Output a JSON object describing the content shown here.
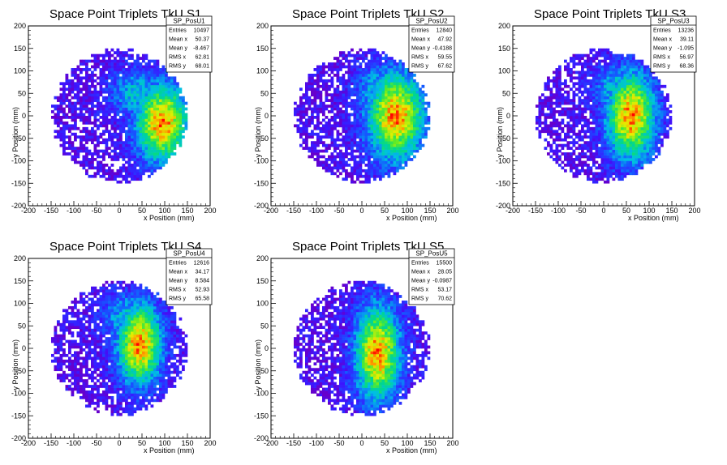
{
  "chart_data": [
    {
      "type": "heatmap",
      "title": "Space Point Triplets TkU S1",
      "xlabel": "x Position (mm)",
      "ylabel": "y Position (mm)",
      "xlim": [
        -200,
        200
      ],
      "ylim": [
        -200,
        200
      ],
      "xticks": [
        "-200",
        "-150",
        "-100",
        "-50",
        "0",
        "50",
        "100",
        "150",
        "200"
      ],
      "yticks": [
        "-200",
        "-150",
        "-100",
        "-50",
        "0",
        "50",
        "100",
        "150",
        "200"
      ],
      "colormap": "rainbow",
      "stats": {
        "name": "SP_PosU1",
        "rows": [
          {
            "label": "Entries",
            "value": "10497"
          },
          {
            "label": "Mean x",
            "value": "50.37"
          },
          {
            "label": "Mean y",
            "value": "-8.467"
          },
          {
            "label": "RMS x",
            "value": "62.81"
          },
          {
            "label": "RMS y",
            "value": "68.01"
          }
        ]
      },
      "distribution": {
        "radius": 150,
        "hotspot": {
          "x": 95,
          "y": -15,
          "sx": 42,
          "sy": 62
        },
        "secondary": {
          "x": 40,
          "y": 50,
          "sx": 45,
          "sy": 40
        }
      }
    },
    {
      "type": "heatmap",
      "title": "Space Point Triplets TkU S2",
      "xlabel": "x Position (mm)",
      "ylabel": "y Position (mm)",
      "xlim": [
        -200,
        200
      ],
      "ylim": [
        -200,
        200
      ],
      "xticks": [
        "-200",
        "-150",
        "-100",
        "-50",
        "0",
        "50",
        "100",
        "150",
        "200"
      ],
      "yticks": [
        "-200",
        "-150",
        "-100",
        "-50",
        "0",
        "50",
        "100",
        "150",
        "200"
      ],
      "colormap": "rainbow",
      "stats": {
        "name": "SP_PosU2",
        "rows": [
          {
            "label": "Entries",
            "value": "12840"
          },
          {
            "label": "Mean x",
            "value": "47.92"
          },
          {
            "label": "Mean y",
            "value": "-0.4188"
          },
          {
            "label": "RMS x",
            "value": "59.55"
          },
          {
            "label": "RMS y",
            "value": "67.62"
          }
        ]
      },
      "distribution": {
        "radius": 150,
        "hotspot": {
          "x": 75,
          "y": 0,
          "sx": 45,
          "sy": 70
        },
        "secondary": {
          "x": 40,
          "y": 60,
          "sx": 40,
          "sy": 40
        }
      }
    },
    {
      "type": "heatmap",
      "title": "Space Point Triplets TkU S3",
      "xlabel": "x Position (mm)",
      "ylabel": "y Position (mm)",
      "xlim": [
        -200,
        200
      ],
      "ylim": [
        -200,
        200
      ],
      "xticks": [
        "-200",
        "-150",
        "-100",
        "-50",
        "0",
        "50",
        "100",
        "150",
        "200"
      ],
      "yticks": [
        "-200",
        "-150",
        "-100",
        "-50",
        "0",
        "50",
        "100",
        "150",
        "200"
      ],
      "colormap": "rainbow",
      "stats": {
        "name": "SP_PosU3",
        "rows": [
          {
            "label": "Entries",
            "value": "13236"
          },
          {
            "label": "Mean x",
            "value": "39.11"
          },
          {
            "label": "Mean y",
            "value": "-1.095"
          },
          {
            "label": "RMS x",
            "value": "56.97"
          },
          {
            "label": "RMS y",
            "value": "68.36"
          }
        ]
      },
      "distribution": {
        "radius": 150,
        "hotspot": {
          "x": 60,
          "y": 0,
          "sx": 38,
          "sy": 70
        },
        "secondary": {
          "x": 30,
          "y": 60,
          "sx": 40,
          "sy": 40
        }
      }
    },
    {
      "type": "heatmap",
      "title": "Space Point Triplets TkU S4",
      "xlabel": "x Position (mm)",
      "ylabel": "y Position (mm)",
      "xlim": [
        -200,
        200
      ],
      "ylim": [
        -200,
        200
      ],
      "xticks": [
        "-200",
        "-150",
        "-100",
        "-50",
        "0",
        "50",
        "100",
        "150",
        "200"
      ],
      "yticks": [
        "-200",
        "-150",
        "-100",
        "-50",
        "0",
        "50",
        "100",
        "150",
        "200"
      ],
      "colormap": "rainbow",
      "stats": {
        "name": "SP_PosU4",
        "rows": [
          {
            "label": "Entries",
            "value": "12616"
          },
          {
            "label": "Mean x",
            "value": "34.17"
          },
          {
            "label": "Mean y",
            "value": "8.584"
          },
          {
            "label": "RMS x",
            "value": "52.93"
          },
          {
            "label": "RMS y",
            "value": "65.58"
          }
        ]
      },
      "distribution": {
        "radius": 150,
        "hotspot": {
          "x": 45,
          "y": 10,
          "sx": 35,
          "sy": 65
        },
        "secondary": {
          "x": 20,
          "y": 70,
          "sx": 40,
          "sy": 40
        }
      }
    },
    {
      "type": "heatmap",
      "title": "Space Point Triplets TkU S5",
      "xlabel": "x Position (mm)",
      "ylabel": "y Position (mm)",
      "xlim": [
        -200,
        200
      ],
      "ylim": [
        -200,
        200
      ],
      "xticks": [
        "-200",
        "-150",
        "-100",
        "-50",
        "0",
        "50",
        "100",
        "150",
        "200"
      ],
      "yticks": [
        "-200",
        "-150",
        "-100",
        "-50",
        "0",
        "50",
        "100",
        "150",
        "200"
      ],
      "colormap": "rainbow",
      "stats": {
        "name": "SP_PosU5",
        "rows": [
          {
            "label": "Entries",
            "value": "15500"
          },
          {
            "label": "Mean x",
            "value": "28.05"
          },
          {
            "label": "Mean y",
            "value": "-0.0987"
          },
          {
            "label": "RMS x",
            "value": "53.17"
          },
          {
            "label": "RMS y",
            "value": "70.62"
          }
        ]
      },
      "distribution": {
        "radius": 150,
        "hotspot": {
          "x": 35,
          "y": -10,
          "sx": 35,
          "sy": 75
        },
        "secondary": {
          "x": 10,
          "y": -70,
          "sx": 30,
          "sy": 30
        }
      }
    }
  ]
}
